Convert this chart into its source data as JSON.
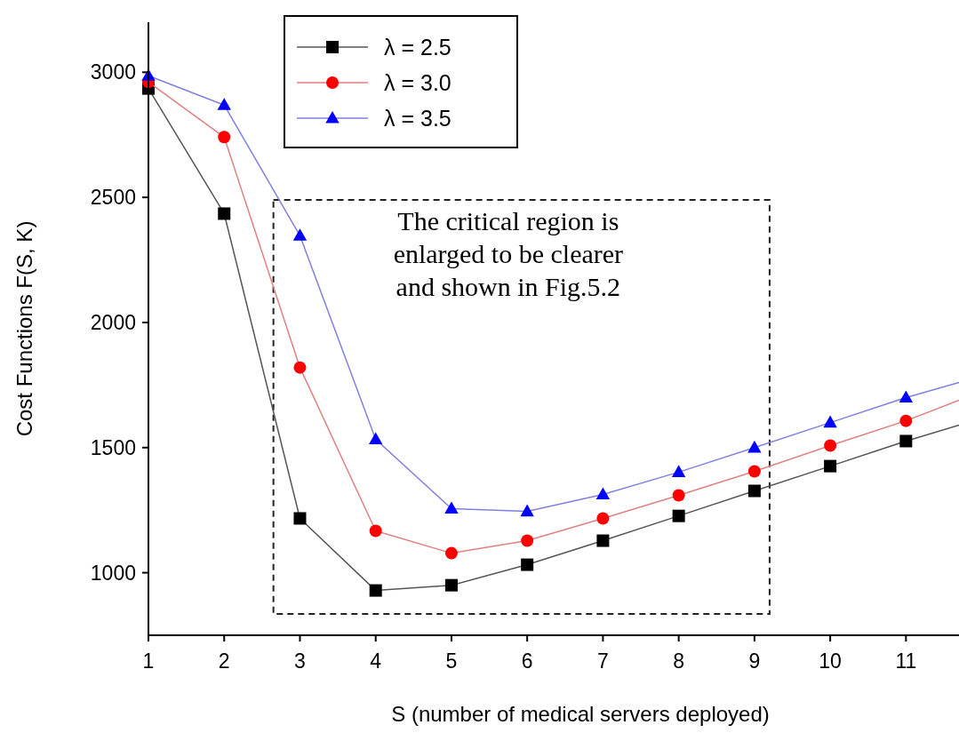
{
  "chart_data": {
    "type": "line",
    "xlabel": "S (number of medical servers deployed)",
    "ylabel": "Cost Functions F(S, K)",
    "x": [
      1,
      2,
      3,
      4,
      5,
      6,
      7,
      8,
      9,
      10,
      11,
      11.7
    ],
    "xlim": [
      1,
      11.7
    ],
    "xticks": [
      1,
      2,
      3,
      4,
      5,
      6,
      7,
      8,
      9,
      10,
      11
    ],
    "ylim": [
      750,
      3200
    ],
    "yticks": [
      1000,
      1500,
      2000,
      2500,
      3000
    ],
    "grid": false,
    "legend": "top left",
    "annotations": [
      "The critical region is enlarged to be clearer and shown in Fig.5.2"
    ],
    "series": [
      {
        "name": "λ = 2.5",
        "color": "#000000",
        "marker": "square",
        "values": [
          2935,
          2435,
          1217,
          929,
          950,
          1032,
          1128,
          1227,
          1327,
          1426,
          1526,
          1590
        ]
      },
      {
        "name": "λ = 3.0",
        "color": "#ff0000",
        "marker": "circle",
        "values": [
          2961,
          2741,
          1820,
          1167,
          1078,
          1128,
          1217,
          1309,
          1405,
          1508,
          1607,
          1689
        ]
      },
      {
        "name": "λ = 3.5",
        "color": "#0000ff",
        "marker": "triangle",
        "values": [
          2986,
          2869,
          2347,
          1533,
          1256,
          1245,
          1313,
          1402,
          1500,
          1600,
          1700,
          1760
        ]
      }
    ]
  }
}
